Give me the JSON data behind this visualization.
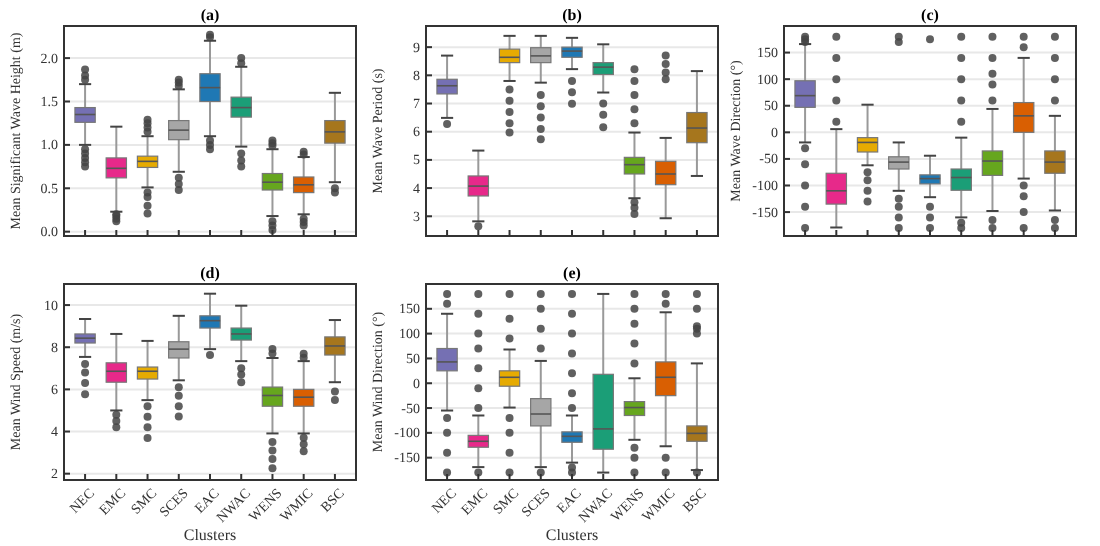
{
  "chart_data": [
    {
      "type": "box",
      "title": "(a)",
      "ylabel": "Mean Significant Wave Height (m)",
      "categories": [
        null,
        null,
        null,
        null,
        null,
        null,
        null,
        null,
        null
      ],
      "colors": [
        "#7570b3",
        "#e7298a",
        "#e6ab02",
        "#a6a6a6",
        "#1f78b4",
        "#1b9e77",
        "#66a61e",
        "#d95f02",
        "#a6761d"
      ],
      "ylim": [
        -0.05,
        2.37
      ],
      "yticks": [
        {
          "value": 0,
          "label": "0.0"
        },
        {
          "value": 0.5,
          "label": "0.5"
        },
        {
          "value": 1,
          "label": "1.0"
        },
        {
          "value": 1.5,
          "label": "1.5"
        },
        {
          "value": 2,
          "label": "2.0"
        }
      ],
      "grid": "y",
      "boxes": [
        {
          "low": 1.0,
          "q1": 1.26,
          "median": 1.35,
          "q3": 1.43,
          "high": 1.7,
          "outliers": [
            0.75,
            0.8,
            0.85,
            0.9,
            0.95,
            1.75,
            1.8,
            1.87
          ]
        },
        {
          "low": 0.23,
          "q1": 0.62,
          "median": 0.73,
          "q3": 0.85,
          "high": 1.21,
          "outliers": [
            0.12,
            0.15,
            0.18,
            0.2
          ]
        },
        {
          "low": 0.51,
          "q1": 0.74,
          "median": 0.81,
          "q3": 0.87,
          "high": 1.1,
          "outliers": [
            0.21,
            0.3,
            0.4,
            0.45,
            1.15,
            1.2,
            1.25,
            1.29
          ]
        },
        {
          "low": 0.69,
          "q1": 1.06,
          "median": 1.17,
          "q3": 1.28,
          "high": 1.64,
          "outliers": [
            0.48,
            0.55,
            0.62,
            1.68,
            1.72,
            1.75
          ]
        },
        {
          "low": 1.1,
          "q1": 1.5,
          "median": 1.66,
          "q3": 1.82,
          "high": 2.2,
          "outliers": [
            0.95,
            1.0,
            1.05,
            2.24,
            2.27
          ]
        },
        {
          "low": 0.98,
          "q1": 1.32,
          "median": 1.43,
          "q3": 1.55,
          "high": 1.9,
          "outliers": [
            0.75,
            0.82,
            0.9,
            1.94,
            2.0
          ]
        },
        {
          "low": 0.18,
          "q1": 0.48,
          "median": 0.57,
          "q3": 0.67,
          "high": 0.95,
          "outliers": [
            0.02,
            0.07,
            0.12,
            0.99,
            1.02,
            1.05
          ]
        },
        {
          "low": 0.2,
          "q1": 0.45,
          "median": 0.54,
          "q3": 0.63,
          "high": 0.86,
          "outliers": [
            0.07,
            0.11,
            0.15,
            0.89,
            0.92
          ]
        },
        {
          "low": 0.57,
          "q1": 1.02,
          "median": 1.15,
          "q3": 1.28,
          "high": 1.6,
          "outliers": [
            0.45,
            0.5
          ]
        }
      ]
    },
    {
      "type": "box",
      "title": "(b)",
      "ylabel": "Mean Wave Period (s)",
      "categories": [
        null,
        null,
        null,
        null,
        null,
        null,
        null,
        null,
        null
      ],
      "colors": [
        "#7570b3",
        "#e7298a",
        "#e6ab02",
        "#a6a6a6",
        "#1f78b4",
        "#1b9e77",
        "#66a61e",
        "#d95f02",
        "#a6761d"
      ],
      "ylim": [
        2.3,
        9.75
      ],
      "yticks": [
        3,
        4,
        5,
        6,
        7,
        8,
        9
      ],
      "grid": "y",
      "boxes": [
        {
          "low": 6.49,
          "q1": 7.34,
          "median": 7.63,
          "q3": 7.86,
          "high": 8.7,
          "outliers": [
            6.27
          ]
        },
        {
          "low": 2.82,
          "q1": 3.72,
          "median": 4.07,
          "q3": 4.43,
          "high": 5.33,
          "outliers": [
            2.65
          ]
        },
        {
          "low": 7.8,
          "q1": 8.45,
          "median": 8.64,
          "q3": 8.93,
          "high": 9.4,
          "outliers": [
            5.97,
            6.3,
            6.7,
            7.1,
            7.5
          ]
        },
        {
          "low": 7.74,
          "q1": 8.45,
          "median": 8.69,
          "q3": 8.98,
          "high": 9.4,
          "outliers": [
            5.73,
            6.1,
            6.5,
            6.9,
            7.3
          ]
        },
        {
          "low": 8.22,
          "q1": 8.64,
          "median": 8.86,
          "q3": 9.0,
          "high": 9.33,
          "outliers": [
            6.99,
            7.4,
            7.8
          ]
        },
        {
          "low": 7.39,
          "q1": 8.03,
          "median": 8.29,
          "q3": 8.45,
          "high": 9.1,
          "outliers": [
            6.16,
            6.6,
            7.0
          ]
        },
        {
          "low": 3.64,
          "q1": 4.5,
          "median": 4.83,
          "q3": 5.09,
          "high": 5.97,
          "outliers": [
            3.08,
            3.3,
            3.5,
            6.3,
            6.8,
            7.3,
            7.8,
            8.22
          ]
        },
        {
          "low": 2.93,
          "q1": 4.12,
          "median": 4.5,
          "q3": 4.95,
          "high": 5.78,
          "outliers": [
            7.86,
            8.1,
            8.4,
            8.7
          ]
        },
        {
          "low": 4.43,
          "q1": 5.61,
          "median": 6.13,
          "q3": 6.68,
          "high": 8.15
        }
      ]
    },
    {
      "type": "box",
      "title": "(c)",
      "ylabel": "Mean Wave Direction (°)",
      "categories": [
        null,
        null,
        null,
        null,
        null,
        null,
        null,
        null,
        null
      ],
      "colors": [
        "#7570b3",
        "#e7298a",
        "#e6ab02",
        "#a6a6a6",
        "#1f78b4",
        "#1b9e77",
        "#66a61e",
        "#d95f02",
        "#a6761d"
      ],
      "ylim": [
        -195,
        200
      ],
      "yticks": [
        -150,
        -100,
        -50,
        0,
        50,
        100,
        150
      ],
      "grid": "y",
      "boxes": [
        {
          "low": -19,
          "q1": 47,
          "median": 69,
          "q3": 97,
          "high": 166,
          "outliers": [
            -180,
            -140,
            -100,
            -60,
            -30,
            170,
            175,
            180
          ]
        },
        {
          "low": -179,
          "q1": -135,
          "median": -110,
          "q3": -77,
          "high": 6,
          "outliers": [
            20,
            60,
            100,
            140,
            180
          ]
        },
        {
          "low": -62,
          "q1": -37,
          "median": -19,
          "q3": -10,
          "high": 52,
          "outliers": [
            -130,
            -110,
            -90,
            -75
          ]
        },
        {
          "low": -110,
          "q1": -69,
          "median": -56,
          "q3": -46,
          "high": -19,
          "outliers": [
            -180,
            -160,
            -140,
            -125,
            170,
            180
          ]
        },
        {
          "low": -122,
          "q1": -97,
          "median": -87,
          "q3": -80,
          "high": -44,
          "outliers": [
            -180,
            -160,
            -140,
            175
          ]
        },
        {
          "low": -160,
          "q1": -109,
          "median": -85,
          "q3": -69,
          "high": -10,
          "outliers": [
            -180,
            -170,
            20,
            60,
            100,
            140,
            180
          ]
        },
        {
          "low": -148,
          "q1": -81,
          "median": -54,
          "q3": -35,
          "high": 44,
          "outliers": [
            -180,
            -165,
            60,
            90,
            110,
            140,
            180
          ]
        },
        {
          "low": -87,
          "q1": 0,
          "median": 31,
          "q3": 56,
          "high": 140,
          "outliers": [
            -180,
            -150,
            -120,
            -100,
            160,
            180
          ]
        },
        {
          "low": -147,
          "q1": -77,
          "median": -56,
          "q3": -35,
          "high": 31,
          "outliers": [
            -180,
            -165,
            60,
            100,
            140,
            180
          ]
        }
      ]
    },
    {
      "type": "box",
      "title": "(d)",
      "xlabel": "Clusters",
      "ylabel": "Mean Wind Speed (m/s)",
      "categories": [
        "NEC",
        "EMC",
        "SMC",
        "SCES",
        "EAC",
        "NWAC",
        "WENS",
        "WMIC",
        "BSC"
      ],
      "colors": [
        "#7570b3",
        "#e7298a",
        "#e6ab02",
        "#a6a6a6",
        "#1f78b4",
        "#1b9e77",
        "#66a61e",
        "#d95f02",
        "#a6761d"
      ],
      "ylim": [
        1.7,
        11
      ],
      "yticks": [
        2,
        4,
        6,
        8,
        10
      ],
      "grid": "y",
      "boxes": [
        {
          "low": 7.54,
          "q1": 8.2,
          "median": 8.43,
          "q3": 8.63,
          "high": 9.34,
          "outliers": [
            5.77,
            6.3,
            6.8,
            7.2
          ]
        },
        {
          "low": 5.0,
          "q1": 6.34,
          "median": 6.86,
          "q3": 7.26,
          "high": 8.63,
          "outliers": [
            4.2,
            4.5,
            4.8
          ]
        },
        {
          "low": 5.49,
          "q1": 6.49,
          "median": 6.86,
          "q3": 7.06,
          "high": 8.3,
          "outliers": [
            3.69,
            4.2,
            4.7,
            5.2
          ]
        },
        {
          "low": 6.43,
          "q1": 7.49,
          "median": 7.91,
          "q3": 8.26,
          "high": 9.49,
          "outliers": [
            4.71,
            5.2,
            5.7,
            6.1
          ]
        },
        {
          "low": 7.91,
          "q1": 8.91,
          "median": 9.26,
          "q3": 9.49,
          "high": 10.54,
          "outliers": [
            7.63
          ]
        },
        {
          "low": 7.34,
          "q1": 8.34,
          "median": 8.63,
          "q3": 8.91,
          "high": 9.97,
          "outliers": [
            6.34,
            6.7,
            7.0
          ]
        },
        {
          "low": 3.91,
          "q1": 5.2,
          "median": 5.71,
          "q3": 6.11,
          "high": 7.49,
          "outliers": [
            2.26,
            2.7,
            3.1,
            3.5,
            7.7,
            7.91
          ]
        },
        {
          "low": 3.91,
          "q1": 5.2,
          "median": 5.63,
          "q3": 6.0,
          "high": 7.34,
          "outliers": [
            3.06,
            3.4,
            3.7,
            7.5,
            7.69
          ]
        },
        {
          "low": 6.34,
          "q1": 7.63,
          "median": 8.06,
          "q3": 8.49,
          "high": 9.29,
          "outliers": [
            5.49,
            5.9
          ]
        }
      ]
    },
    {
      "type": "box",
      "title": "(e)",
      "xlabel": "Clusters",
      "ylabel": "Mean Wind Direction (°)",
      "categories": [
        "NEC",
        "EMC",
        "SMC",
        "SCES",
        "EAC",
        "NWAC",
        "WENS",
        "WMIC",
        "BSC"
      ],
      "colors": [
        "#7570b3",
        "#e7298a",
        "#e6ab02",
        "#a6a6a6",
        "#1f78b4",
        "#1b9e77",
        "#66a61e",
        "#d95f02",
        "#a6761d"
      ],
      "ylim": [
        -195,
        200
      ],
      "yticks": [
        -150,
        -100,
        -50,
        0,
        50,
        100,
        150
      ],
      "grid": "y",
      "boxes": [
        {
          "low": -55,
          "q1": 25,
          "median": 43,
          "q3": 70,
          "high": 140,
          "outliers": [
            -180,
            -140,
            -100,
            -70,
            160,
            180
          ]
        },
        {
          "low": -169,
          "q1": -129,
          "median": -117,
          "q3": -105,
          "high": -65,
          "outliers": [
            -180,
            -50,
            -10,
            30,
            70,
            100,
            140,
            180
          ]
        },
        {
          "low": -49,
          "q1": -6,
          "median": 12,
          "q3": 25,
          "high": 68,
          "outliers": [
            -180,
            -140,
            -100,
            -70,
            90,
            130,
            180
          ]
        },
        {
          "low": -169,
          "q1": -86,
          "median": -62,
          "q3": -31,
          "high": 45,
          "outliers": [
            -180,
            70,
            110,
            150,
            180
          ]
        },
        {
          "low": -160,
          "q1": -119,
          "median": -107,
          "q3": -98,
          "high": -65,
          "outliers": [
            -180,
            -170,
            -50,
            -20,
            20,
            60,
            100,
            140,
            180
          ]
        },
        {
          "low": -180,
          "q1": -133,
          "median": -92,
          "q3": 18,
          "high": 180
        },
        {
          "low": -114,
          "q1": -65,
          "median": -49,
          "q3": -37,
          "high": 10,
          "outliers": [
            -180,
            -150,
            -130,
            40,
            80,
            120,
            150,
            180
          ]
        },
        {
          "low": -127,
          "q1": -25,
          "median": 12,
          "q3": 43,
          "high": 143,
          "outliers": [
            -180,
            -150,
            160,
            180
          ]
        },
        {
          "low": -175,
          "q1": -117,
          "median": -101,
          "q3": -86,
          "high": 40,
          "outliers": [
            -180,
            100,
            110,
            115,
            150,
            180
          ]
        }
      ]
    }
  ]
}
